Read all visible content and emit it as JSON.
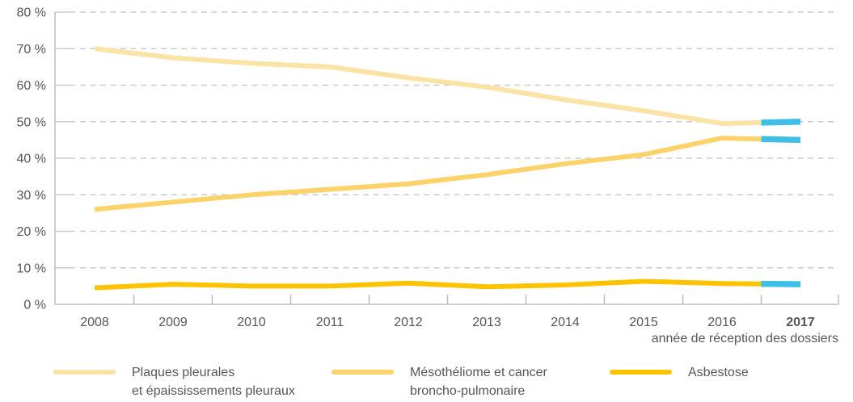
{
  "chart_data": {
    "type": "line",
    "x": [
      2008,
      2009,
      2010,
      2011,
      2012,
      2013,
      2014,
      2015,
      2016,
      2017
    ],
    "xticklabels": [
      "2008",
      "2009",
      "2010",
      "2011",
      "2012",
      "2013",
      "2014",
      "2015",
      "2016",
      "2017"
    ],
    "bold_xticklabel": "2017",
    "xlabel": "année de réception des dossiers",
    "ylim": [
      0,
      80
    ],
    "ytick_step": 10,
    "yticklabels": [
      "0 %",
      "10 %",
      "20 %",
      "30 %",
      "40 %",
      "50 %",
      "60 %",
      "70 %",
      "80 %"
    ],
    "grid": "horizontal-dashed",
    "legend_position": "bottom",
    "series": [
      {
        "name": "Plaques pleurales et épaississements pleuraux",
        "color": "#fae3a4",
        "values": [
          70,
          67.5,
          66,
          65,
          62,
          59.5,
          56,
          53,
          49.5,
          50
        ]
      },
      {
        "name": "Mésothéliome et cancer broncho-pulmonaire",
        "color": "#fcd36b",
        "values": [
          26,
          28,
          30,
          31.5,
          33,
          35.5,
          38.5,
          41,
          45.5,
          45
        ]
      },
      {
        "name": "Asbestose",
        "color": "#fdc300",
        "values": [
          4.5,
          5.5,
          5,
          5,
          5.8,
          4.8,
          5.3,
          6.3,
          5.7,
          5.5
        ]
      }
    ],
    "last_segment": {
      "color": "#3fbee8",
      "start_x": 2016.5,
      "end_x": 2017
    }
  },
  "legend": {
    "items": [
      {
        "line1": "Plaques pleurales",
        "line2": "et épaississements pleuraux",
        "color": "#fae3a4"
      },
      {
        "line1": "Mésothéliome et cancer",
        "line2": "broncho-pulmonaire",
        "color": "#fcd36b"
      },
      {
        "line1": "Asbestose",
        "line2": "",
        "color": "#fdc300"
      }
    ]
  }
}
